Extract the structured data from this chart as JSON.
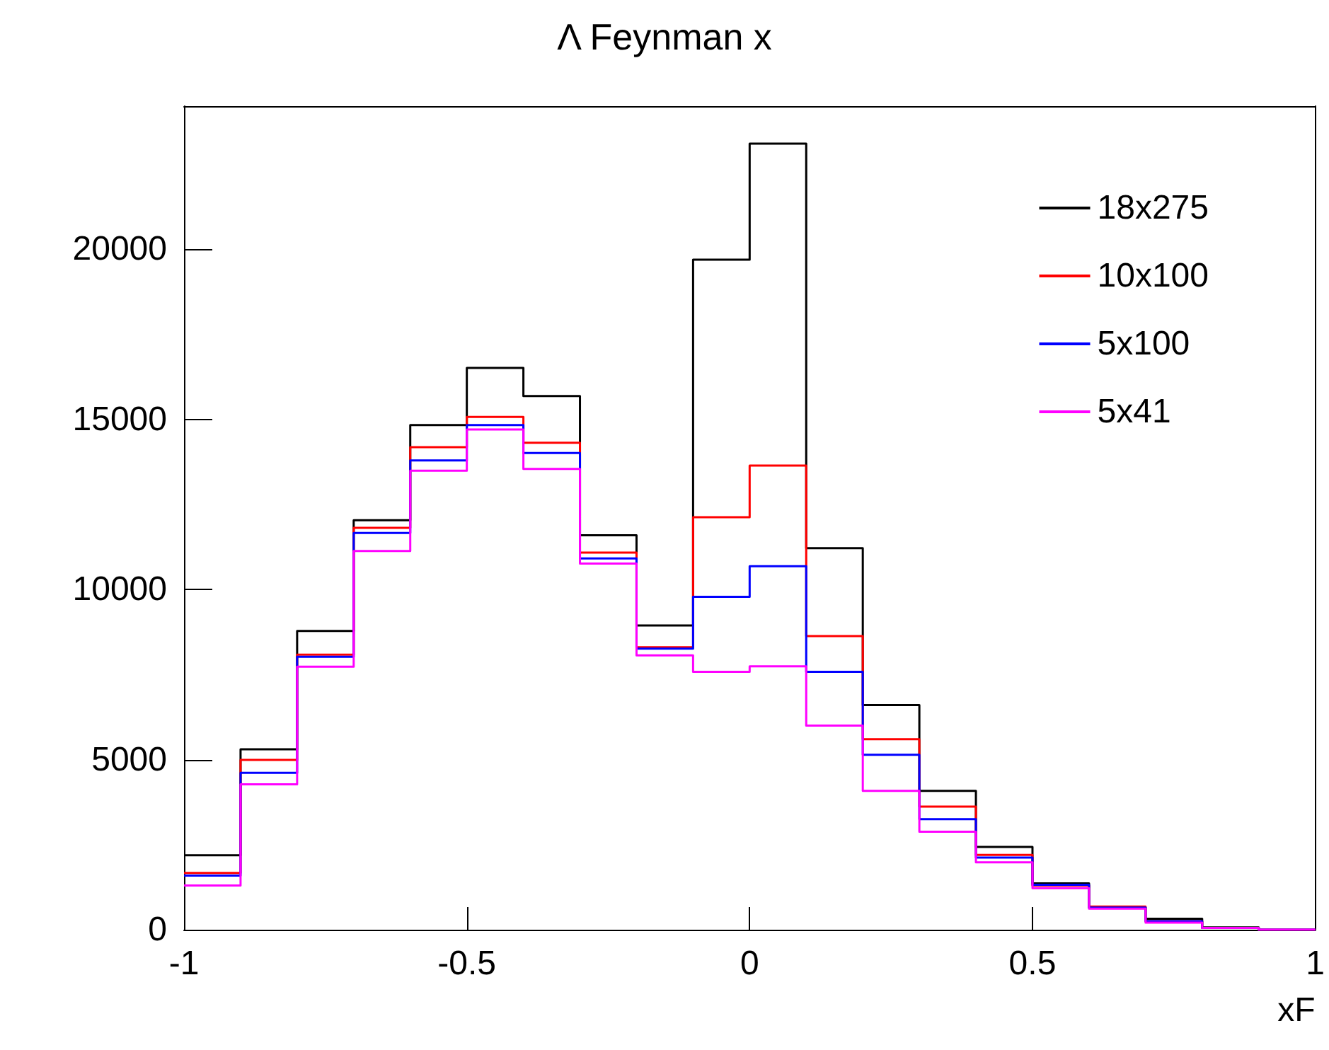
{
  "chart_data": {
    "type": "histogram",
    "title": "Λ Feynman x",
    "xlabel": "xF",
    "bins": [
      -1,
      -0.9,
      -0.8,
      -0.7,
      -0.6,
      -0.5,
      -0.4,
      -0.3,
      -0.2,
      -0.1,
      0,
      0.1,
      0.2,
      0.3,
      0.4,
      0.5,
      0.6,
      0.7,
      0.8,
      0.9,
      1
    ],
    "series": [
      {
        "name": "18x275",
        "color": "#000000",
        "values": [
          2190,
          5300,
          8780,
          12030,
          14830,
          16510,
          15680,
          11590,
          8940,
          19690,
          23100,
          11210,
          6600,
          4080,
          2430,
          1360,
          650,
          320,
          70,
          0
        ]
      },
      {
        "name": "10x100",
        "color": "#ff0000",
        "values": [
          1670,
          4990,
          8080,
          11810,
          14180,
          15070,
          14310,
          11080,
          8300,
          12120,
          13640,
          8630,
          5600,
          3620,
          2200,
          1300,
          680,
          250,
          50,
          0
        ]
      },
      {
        "name": "5x100",
        "color": "#0000ff",
        "values": [
          1590,
          4610,
          8020,
          11660,
          13790,
          14830,
          14010,
          10910,
          8260,
          9780,
          10680,
          7580,
          5140,
          3250,
          2120,
          1320,
          650,
          250,
          50,
          0
        ]
      },
      {
        "name": "5x41",
        "color": "#ff00ff",
        "values": [
          1300,
          4270,
          7730,
          11130,
          13490,
          14700,
          13540,
          10760,
          8060,
          7580,
          7740,
          6000,
          4080,
          2880,
          1980,
          1220,
          620,
          210,
          50,
          0
        ]
      }
    ],
    "xlim": [
      -1,
      1
    ],
    "xticks": [
      -1,
      -0.5,
      0,
      0.5,
      1
    ],
    "ylim": [
      0,
      24200
    ],
    "yticks": [
      0,
      5000,
      10000,
      15000,
      20000
    ],
    "legend": "top right"
  }
}
